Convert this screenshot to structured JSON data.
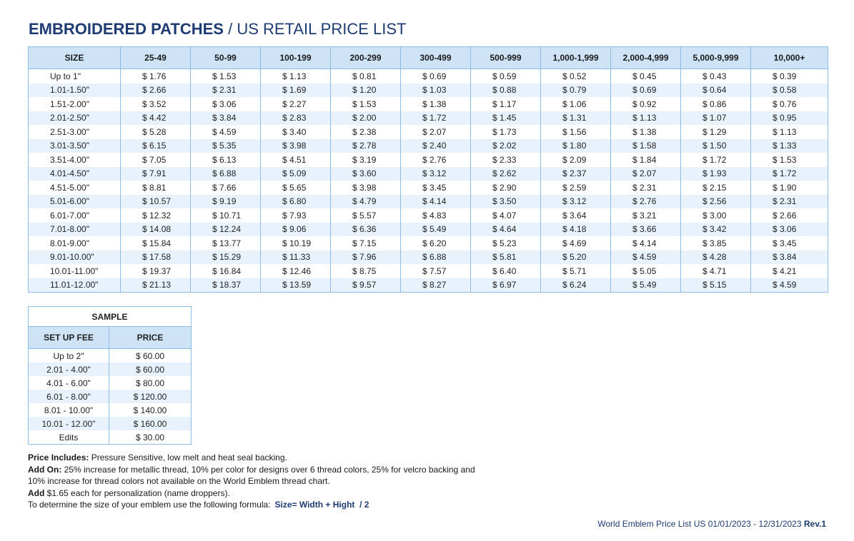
{
  "title": {
    "bold": "EMBROIDERED PATCHES",
    "rest": " / US RETAIL PRICE LIST"
  },
  "price_table": {
    "headers": [
      "SIZE",
      "25-49",
      "50-99",
      "100-199",
      "200-299",
      "300-499",
      "500-999",
      "1,000-1,999",
      "2,000-4,999",
      "5,000-9,999",
      "10,000+"
    ],
    "rows": [
      [
        "Up to 1\"",
        "$ 1.76",
        "$ 1.53",
        "$ 1.13",
        "$ 0.81",
        "$ 0.69",
        "$ 0.59",
        "$ 0.52",
        "$ 0.45",
        "$ 0.43",
        "$ 0.39"
      ],
      [
        "1.01-1.50\"",
        "$ 2.66",
        "$ 2.31",
        "$ 1.69",
        "$ 1.20",
        "$ 1.03",
        "$ 0.88",
        "$ 0.79",
        "$ 0.69",
        "$ 0.64",
        "$ 0.58"
      ],
      [
        "1.51-2.00\"",
        "$ 3.52",
        "$ 3.06",
        "$ 2.27",
        "$ 1.53",
        "$ 1.38",
        "$ 1.17",
        "$ 1.06",
        "$ 0.92",
        "$ 0.86",
        "$ 0.76"
      ],
      [
        "2.01-2.50\"",
        "$ 4.42",
        "$ 3.84",
        "$ 2.83",
        "$ 2.00",
        "$ 1.72",
        "$ 1.45",
        "$ 1.31",
        "$ 1.13",
        "$ 1.07",
        "$ 0.95"
      ],
      [
        "2.51-3.00\"",
        "$ 5.28",
        "$ 4.59",
        "$ 3.40",
        "$ 2.38",
        "$ 2.07",
        "$ 1.73",
        "$ 1.56",
        "$ 1.38",
        "$ 1.29",
        "$ 1.13"
      ],
      [
        "3.01-3.50\"",
        "$ 6.15",
        "$ 5.35",
        "$ 3.98",
        "$ 2.78",
        "$ 2.40",
        "$ 2.02",
        "$ 1.80",
        "$ 1.58",
        "$ 1.50",
        "$ 1.33"
      ],
      [
        "3.51-4.00\"",
        "$ 7.05",
        "$ 6.13",
        "$ 4.51",
        "$ 3.19",
        "$ 2.76",
        "$ 2.33",
        "$ 2.09",
        "$ 1.84",
        "$ 1.72",
        "$ 1.53"
      ],
      [
        "4.01-4.50\"",
        "$ 7.91",
        "$ 6.88",
        "$ 5.09",
        "$ 3.60",
        "$ 3.12",
        "$ 2.62",
        "$ 2.37",
        "$ 2.07",
        "$ 1.93",
        "$ 1.72"
      ],
      [
        "4.51-5.00\"",
        "$ 8.81",
        "$ 7.66",
        "$ 5.65",
        "$ 3.98",
        "$ 3.45",
        "$ 2.90",
        "$ 2.59",
        "$ 2.31",
        "$ 2.15",
        "$ 1.90"
      ],
      [
        "5.01-6.00\"",
        "$ 10.57",
        "$ 9.19",
        "$ 6.80",
        "$ 4.79",
        "$ 4.14",
        "$ 3.50",
        "$ 3.12",
        "$ 2.76",
        "$ 2.56",
        "$ 2.31"
      ],
      [
        "6.01-7.00\"",
        "$ 12.32",
        "$ 10.71",
        "$ 7.93",
        "$ 5.57",
        "$ 4.83",
        "$ 4.07",
        "$ 3.64",
        "$ 3.21",
        "$ 3.00",
        "$ 2.66"
      ],
      [
        "7.01-8.00\"",
        "$ 14.08",
        "$ 12.24",
        "$ 9.06",
        "$ 6.36",
        "$ 5.49",
        "$ 4.64",
        "$ 4.18",
        "$ 3.66",
        "$ 3.42",
        "$ 3.06"
      ],
      [
        "8.01-9.00\"",
        "$ 15.84",
        "$ 13.77",
        "$ 10.19",
        "$ 7.15",
        "$ 6.20",
        "$ 5.23",
        "$ 4.69",
        "$ 4.14",
        "$ 3.85",
        "$ 3.45"
      ],
      [
        "9.01-10.00\"",
        "$ 17.58",
        "$ 15.29",
        "$ 11.33",
        "$ 7.96",
        "$ 6.88",
        "$ 5.81",
        "$ 5.20",
        "$ 4.59",
        "$ 4.28",
        "$ 3.84"
      ],
      [
        "10.01-11.00\"",
        "$ 19.37",
        "$ 16.84",
        "$ 12.46",
        "$ 8.75",
        "$ 7.57",
        "$ 6.40",
        "$ 5.71",
        "$ 5.05",
        "$ 4.71",
        "$ 4.21"
      ],
      [
        "11.01-12.00\"",
        "$ 21.13",
        "$ 18.37",
        "$ 13.59",
        "$ 9.57",
        "$ 8.27",
        "$ 6.97",
        "$ 6.24",
        "$ 5.49",
        "$ 5.15",
        "$ 4.59"
      ]
    ]
  },
  "sample_table": {
    "caption": "SAMPLE",
    "headers": [
      "SET UP FEE",
      "PRICE"
    ],
    "rows": [
      [
        "Up to 2\"",
        "$  60.00"
      ],
      [
        "2.01 - 4.00\"",
        "$  60.00"
      ],
      [
        "4.01 - 6.00\"",
        "$  80.00"
      ],
      [
        "6.01 - 8.00\"",
        "$  120.00"
      ],
      [
        "8.01 - 10.00\"",
        "$  140.00"
      ],
      [
        "10.01 - 12.00\"",
        "$  160.00"
      ],
      [
        "Edits",
        "$  30.00"
      ]
    ]
  },
  "notes": {
    "price_includes_label": "Price Includes:",
    "price_includes_text": " Pressure Sensitive, low melt and heat seal backing.",
    "add_on_label": "Add On:",
    "add_on_text": " 25% increase for metallic thread, 10% per color for designs over 6 thread colors, 25% for velcro backing and",
    "add_on_text2": "10% increase for thread colors not available on the World Emblem thread chart.",
    "add_label": "Add",
    "add_text": " $1.65 each for personalization (name droppers).",
    "formula_text": "To determine the size of your emblem use the following formula:",
    "formula_value": "Size= Width + Hight  / 2"
  },
  "footer": {
    "text": "World Emblem Price List US 01/01/2023 - 12/31/2023 ",
    "rev": "Rev.1"
  },
  "colors": {
    "title_blue": "#1f3b73",
    "header_fill": "#cfe3f6",
    "stripe_fill": "#e8f2fc",
    "border": "#8fbbe3"
  }
}
